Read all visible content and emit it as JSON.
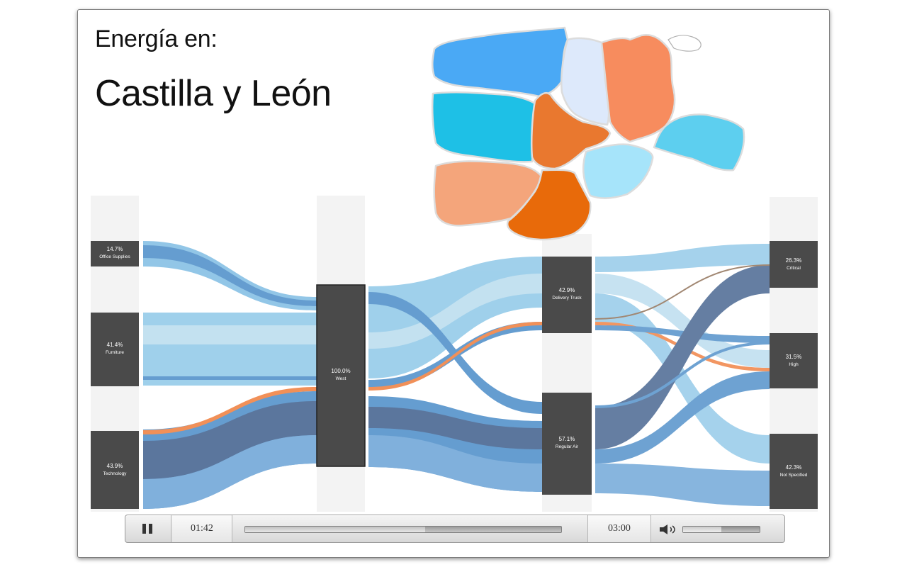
{
  "slide": {
    "title_prefix": "Energía en:",
    "title_region": "Castilla y León"
  },
  "sankey": {
    "sources": [
      {
        "pct": "14.7%",
        "label": "Office Supplies"
      },
      {
        "pct": "41.4%",
        "label": "Furniture"
      },
      {
        "pct": "43.9%",
        "label": "Technology"
      }
    ],
    "region": {
      "pct": "100.0%",
      "label": "West"
    },
    "shipping": [
      {
        "pct": "42.9%",
        "label": "Delivery Truck"
      },
      {
        "pct": "57.1%",
        "label": "Regular Air"
      }
    ],
    "priority": [
      {
        "pct": "26.3%",
        "label": "Critical"
      },
      {
        "pct": "31.5%",
        "label": "High"
      },
      {
        "pct": "42.3%",
        "label": "Not Specified"
      }
    ],
    "colors": {
      "node": "#4a4a4a",
      "column_bg": "#f3f3f3",
      "light_blue": "#7fbde3",
      "mid_blue": "#4b8cc8",
      "dark_blue": "#3f5f8c",
      "highlight": "#ef7d3c"
    }
  },
  "map": {
    "provinces": [
      {
        "name": "province-leon",
        "color": "#4aa9f5"
      },
      {
        "name": "province-palencia",
        "color": "#dde9fb"
      },
      {
        "name": "province-burgos",
        "color": "#f78c5e"
      },
      {
        "name": "province-zamora",
        "color": "#1ec0e6"
      },
      {
        "name": "province-valladolid",
        "color": "#e9782f"
      },
      {
        "name": "province-soria",
        "color": "#5dcfef"
      },
      {
        "name": "province-salamanca",
        "color": "#f4a57b"
      },
      {
        "name": "province-segovia",
        "color": "#a6e4fa"
      },
      {
        "name": "province-avila",
        "color": "#e86a0a"
      }
    ]
  },
  "player": {
    "elapsed": "01:42",
    "total": "03:00",
    "progress": 0.57,
    "volume": 0.5,
    "icons": {
      "pause": "pause-icon",
      "volume": "speaker-icon"
    }
  }
}
